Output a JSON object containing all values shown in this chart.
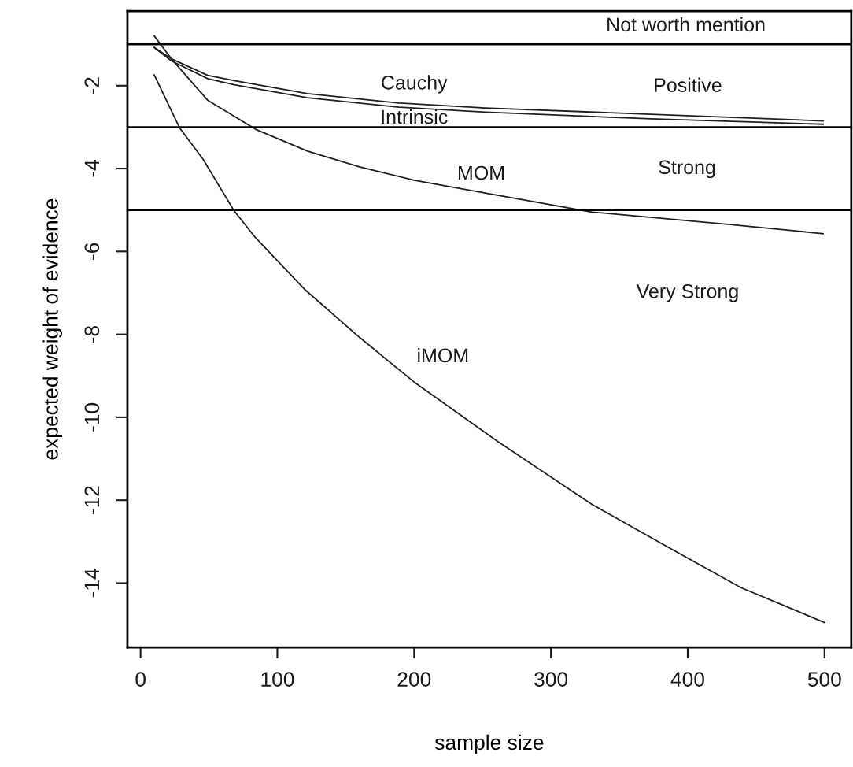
{
  "chart_data": {
    "type": "line",
    "xlabel": "sample size",
    "ylabel": "expected weight of evidence",
    "xlim": [
      -9.6,
      519.6
    ],
    "ylim": [
      -15.55,
      -0.2
    ],
    "xticks": [
      0,
      100,
      200,
      300,
      400,
      500
    ],
    "yticks": [
      -14,
      -12,
      -10,
      -8,
      -6,
      -4,
      -2
    ],
    "grid": false,
    "legend": false,
    "marker": "none",
    "line_style": "solid",
    "series": [
      {
        "name": "Cauchy",
        "color": "#231f20",
        "x": [
          10,
          22.5,
          49,
          68.5,
          122,
          189,
          252,
          373,
          499
        ],
        "values": [
          -1.08,
          -1.35,
          -1.75,
          -1.88,
          -2.19,
          -2.42,
          -2.54,
          -2.69,
          -2.85
        ]
      },
      {
        "name": "Intrinsic",
        "color": "#231f20",
        "x": [
          10,
          22.5,
          49,
          68.5,
          122,
          189,
          252,
          373,
          499
        ],
        "values": [
          -1.08,
          -1.4,
          -1.83,
          -1.98,
          -2.29,
          -2.52,
          -2.64,
          -2.8,
          -2.93
        ]
      },
      {
        "name": "MOM",
        "color": "#231f20",
        "x": [
          10,
          22.5,
          49,
          84,
          122,
          160,
          200,
          252,
          330,
          431,
          499
        ],
        "values": [
          -0.8,
          -1.35,
          -2.35,
          -3.05,
          -3.58,
          -3.96,
          -4.28,
          -4.59,
          -5.05,
          -5.35,
          -5.57
        ]
      },
      {
        "name": "iMOM",
        "color": "#231f20",
        "x": [
          10,
          28.4,
          45.6,
          68.4,
          84.1,
          119.5,
          160,
          200,
          261,
          330,
          392.5,
          439,
          500
        ],
        "values": [
          -1.74,
          -3.01,
          -3.77,
          -5.02,
          -5.67,
          -6.9,
          -8.07,
          -9.15,
          -10.58,
          -12.1,
          -13.26,
          -14.11,
          -14.95
        ]
      }
    ],
    "ref_lines": [
      {
        "axis": "y",
        "value": -1,
        "color": "#000000"
      },
      {
        "axis": "y",
        "value": -3,
        "color": "#000000"
      },
      {
        "axis": "y",
        "value": -5,
        "color": "#000000"
      }
    ],
    "annotations": [
      "Not worth mention",
      "Positive",
      "Strong",
      "Very Strong"
    ]
  }
}
